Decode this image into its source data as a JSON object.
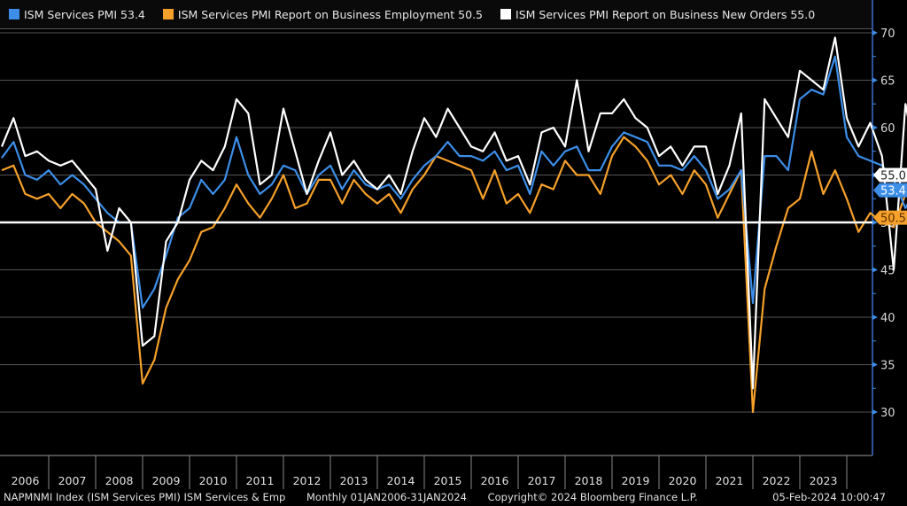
{
  "legend": [
    {
      "label": "ISM Services PMI 53.4",
      "color": "#3d8ee8"
    },
    {
      "label": "ISM Services PMI Report on Business Employment 50.5",
      "color": "#f5a02a"
    },
    {
      "label": "ISM Services PMI Report on Business New Orders 55.0",
      "color": "#ffffff"
    }
  ],
  "footer": {
    "ticker": "NAPMNMI Index (ISM Services PMI) ISM Services & Emp",
    "range": "Monthly 01JAN2006-31JAN2024",
    "copyright": "Copyright© 2024 Bloomberg Finance L.P.",
    "timestamp": "05-Feb-2024 10:00:47"
  },
  "chart_data": {
    "type": "line",
    "title": "",
    "xlabel": "",
    "ylabel": "",
    "ylim": [
      25.5,
      71
    ],
    "yticks": [
      30,
      35,
      40,
      45,
      50,
      55,
      60,
      65,
      70
    ],
    "grid": true,
    "legend_position": "top",
    "reference_line": 50,
    "x_start": "2006-01",
    "x_end": "2024-01",
    "x_step": "quarter",
    "year_labels": [
      "2006",
      "2007",
      "2008",
      "2009",
      "2010",
      "2011",
      "2012",
      "2013",
      "2014",
      "2015",
      "2016",
      "2017",
      "2018",
      "2019",
      "2020",
      "2021",
      "2022",
      "2023"
    ],
    "last_value_labels": [
      {
        "series": "ISM Services PMI Report on Business New Orders",
        "value": "55.0"
      },
      {
        "series": "ISM Services PMI",
        "value": "53.4"
      },
      {
        "series": "ISM Services PMI Report on Business Employment",
        "value": "50.5"
      }
    ],
    "series": [
      {
        "name": "ISM Services PMI",
        "color": "#3d8ee8",
        "values": [
          56.8,
          58.5,
          55.0,
          54.5,
          55.5,
          54.0,
          55.0,
          54.0,
          52.5,
          51.0,
          50.0,
          50.0,
          41.0,
          43.0,
          46.5,
          50.5,
          51.5,
          54.5,
          53.0,
          54.5,
          59.0,
          55.0,
          53.0,
          54.0,
          56.0,
          55.5,
          53.0,
          55.0,
          56.0,
          53.5,
          55.5,
          54.0,
          53.5,
          54.0,
          52.5,
          54.5,
          56.0,
          57.0,
          58.5,
          57.0,
          57.0,
          56.5,
          57.5,
          55.5,
          56.0,
          53.0,
          57.5,
          56.0,
          57.5,
          58.0,
          55.5,
          55.5,
          58.0,
          59.5,
          59.0,
          58.5,
          56.0,
          56.0,
          55.5,
          57.0,
          55.5,
          52.5,
          53.5,
          55.5,
          41.5,
          57.0,
          57.0,
          55.5,
          63.0,
          64.0,
          63.5,
          67.5,
          59.0,
          57.0,
          56.5,
          56.0,
          54.5,
          51.5,
          53.8,
          52.5,
          53.5,
          51.0,
          53.4
        ]
      },
      {
        "name": "ISM Services PMI Report on Business Employment",
        "color": "#f5a02a",
        "values": [
          55.5,
          56.0,
          53.0,
          52.5,
          53.0,
          51.5,
          53.0,
          52.0,
          50.0,
          49.0,
          48.0,
          46.5,
          33.0,
          35.5,
          41.0,
          44.0,
          46.0,
          49.0,
          49.5,
          51.5,
          54.0,
          52.0,
          50.5,
          52.5,
          55.0,
          51.5,
          52.0,
          54.5,
          54.5,
          52.0,
          54.5,
          53.0,
          52.0,
          53.0,
          51.0,
          53.5,
          55.0,
          57.0,
          56.5,
          56.0,
          55.5,
          52.5,
          55.5,
          52.0,
          53.0,
          51.0,
          54.0,
          53.5,
          56.5,
          55.0,
          55.0,
          53.0,
          57.0,
          59.0,
          58.0,
          56.5,
          54.0,
          55.0,
          53.0,
          55.5,
          54.0,
          50.5,
          53.0,
          55.5,
          30.0,
          43.0,
          47.5,
          51.5,
          52.5,
          57.5,
          53.0,
          55.5,
          52.5,
          49.0,
          51.0,
          50.0,
          49.5,
          53.0,
          52.0,
          50.5,
          51.0,
          44.0,
          50.5
        ]
      },
      {
        "name": "ISM Services PMI Report on Business New Orders",
        "color": "#ffffff",
        "values": [
          58.0,
          61.0,
          57.0,
          57.5,
          56.5,
          56.0,
          56.5,
          55.0,
          53.5,
          47.0,
          51.5,
          50.0,
          37.0,
          38.0,
          48.0,
          50.0,
          54.5,
          56.5,
          55.5,
          58.0,
          63.0,
          61.5,
          54.0,
          55.0,
          62.0,
          57.5,
          53.0,
          56.5,
          59.5,
          55.0,
          56.5,
          54.5,
          53.5,
          55.0,
          53.0,
          57.5,
          61.0,
          59.0,
          62.0,
          60.0,
          58.0,
          57.5,
          59.5,
          56.5,
          57.0,
          54.0,
          59.5,
          60.0,
          58.0,
          65.0,
          57.5,
          61.5,
          61.5,
          63.0,
          61.0,
          60.0,
          57.0,
          58.0,
          56.0,
          58.0,
          58.0,
          53.0,
          56.0,
          61.5,
          32.5,
          63.0,
          61.0,
          59.0,
          66.0,
          65.0,
          64.0,
          69.5,
          61.0,
          58.0,
          60.5,
          57.0,
          45.0,
          62.5,
          56.0,
          55.5,
          54.5,
          53.0,
          55.0
        ]
      }
    ]
  }
}
